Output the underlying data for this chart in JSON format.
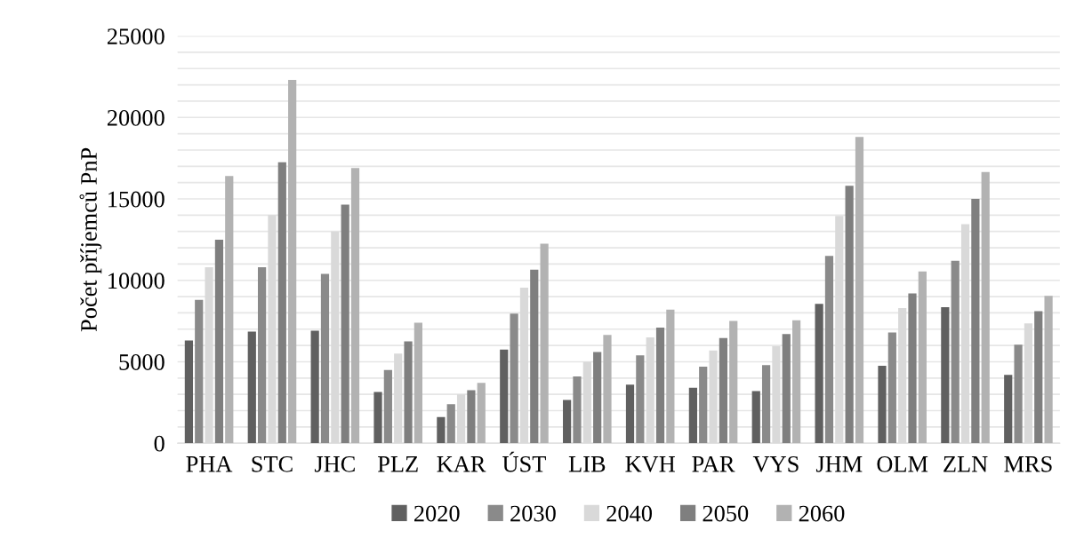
{
  "chart_data": {
    "type": "bar",
    "ylabel": "Počet příjemců PnP",
    "categories": [
      "PHA",
      "STC",
      "JHC",
      "PLZ",
      "KAR",
      "ÚST",
      "LIB",
      "KVH",
      "PAR",
      "VYS",
      "JHM",
      "OLM",
      "ZLN",
      "MRS"
    ],
    "series": [
      {
        "name": "2020",
        "color": "#606060",
        "values": [
          6300,
          6850,
          6900,
          3150,
          1600,
          5750,
          2650,
          3600,
          3400,
          3200,
          8550,
          4750,
          8350,
          4200
        ]
      },
      {
        "name": "2030",
        "color": "#8a8a8a",
        "values": [
          8800,
          10800,
          10400,
          4500,
          2400,
          7950,
          4100,
          5400,
          4700,
          4800,
          11500,
          6800,
          11200,
          6050
        ]
      },
      {
        "name": "2040",
        "color": "#d9d9d9",
        "values": [
          10800,
          14000,
          13000,
          5500,
          3000,
          9550,
          5000,
          6500,
          5700,
          5950,
          13950,
          8300,
          13450,
          7350
        ]
      },
      {
        "name": "2050",
        "color": "#7f7f7f",
        "values": [
          12500,
          17250,
          14650,
          6250,
          3250,
          10650,
          5600,
          7100,
          6450,
          6700,
          15800,
          9200,
          15000,
          8100
        ]
      },
      {
        "name": "2060",
        "color": "#b2b2b2",
        "values": [
          16400,
          22300,
          16900,
          7400,
          3700,
          12250,
          6650,
          8200,
          7500,
          7550,
          18800,
          10550,
          16650,
          9050
        ]
      }
    ],
    "ylim": [
      0,
      25000
    ],
    "yticks": [
      0,
      {
        "value": 1000,
        "label": null
      },
      {
        "value": 2000,
        "label": null
      },
      {
        "value": 3000,
        "label": null
      },
      {
        "value": 4000,
        "label": null
      },
      5000,
      {
        "value": 6000,
        "label": null
      },
      {
        "value": 7000,
        "label": null
      },
      {
        "value": 8000,
        "label": null
      },
      {
        "value": 9000,
        "label": null
      },
      10000,
      {
        "value": 11000,
        "label": null
      },
      {
        "value": 12000,
        "label": null
      },
      {
        "value": 13000,
        "label": null
      },
      {
        "value": 14000,
        "label": null
      },
      15000,
      {
        "value": 16000,
        "label": null
      },
      {
        "value": 17000,
        "label": null
      },
      {
        "value": 18000,
        "label": null
      },
      {
        "value": 19000,
        "label": null
      },
      20000,
      {
        "value": 21000,
        "label": null
      },
      {
        "value": 22000,
        "label": null
      },
      {
        "value": 23000,
        "label": null
      },
      {
        "value": 24000,
        "label": null
      },
      25000
    ],
    "grid": "y",
    "legend": "bottom"
  }
}
